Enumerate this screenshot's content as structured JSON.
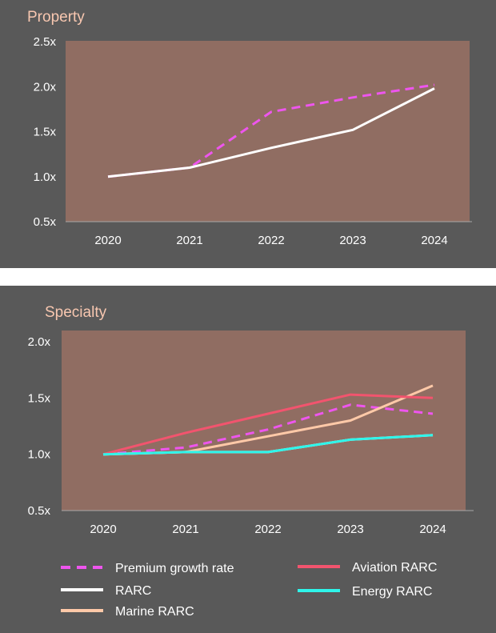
{
  "chart_data": [
    {
      "type": "line",
      "title": "Property",
      "categories": [
        "2020",
        "2021",
        "2022",
        "2023",
        "2024"
      ],
      "y_ticks": [
        "0.5x",
        "1.0x",
        "1.5x",
        "2.0x",
        "2.5x"
      ],
      "ylim": [
        0.5,
        2.5
      ],
      "series": [
        {
          "name": "Premium growth rate",
          "color": "#ee55ee",
          "dashed": true,
          "values": [
            1.0,
            1.1,
            1.72,
            1.88,
            2.02
          ]
        },
        {
          "name": "RARC",
          "color": "#ffffff",
          "dashed": false,
          "values": [
            1.0,
            1.1,
            1.32,
            1.52,
            1.98
          ]
        }
      ]
    },
    {
      "type": "line",
      "title": "Specialty",
      "categories": [
        "2020",
        "2021",
        "2022",
        "2023",
        "2024"
      ],
      "y_ticks": [
        "0.5x",
        "1.0x",
        "1.5x",
        "2.0x"
      ],
      "ylim": [
        0.5,
        2.0
      ],
      "legend": "bottom",
      "series": [
        {
          "name": "Premium growth rate",
          "color": "#ee55ee",
          "dashed": true,
          "values": [
            1.0,
            1.06,
            1.22,
            1.44,
            1.36
          ]
        },
        {
          "name": "RARC",
          "color": "#ffffff",
          "dashed": false,
          "values": [
            1.0,
            1.02,
            1.02,
            1.13,
            1.17
          ]
        },
        {
          "name": "Marine RARC",
          "color": "#ffc9a8",
          "dashed": false,
          "values": [
            1.0,
            1.02,
            1.16,
            1.3,
            1.61
          ]
        },
        {
          "name": "Aviation RARC",
          "color": "#f2546e",
          "dashed": false,
          "values": [
            1.0,
            1.19,
            1.36,
            1.53,
            1.5
          ]
        },
        {
          "name": "Energy RARC",
          "color": "#2ef5ea",
          "dashed": false,
          "values": [
            1.0,
            1.02,
            1.02,
            1.13,
            1.17
          ]
        }
      ]
    }
  ],
  "colors": {
    "panel_bg": "#595959",
    "plot_bg": "#906d62",
    "title": "#f8c7b0",
    "text": "#ffffff"
  }
}
